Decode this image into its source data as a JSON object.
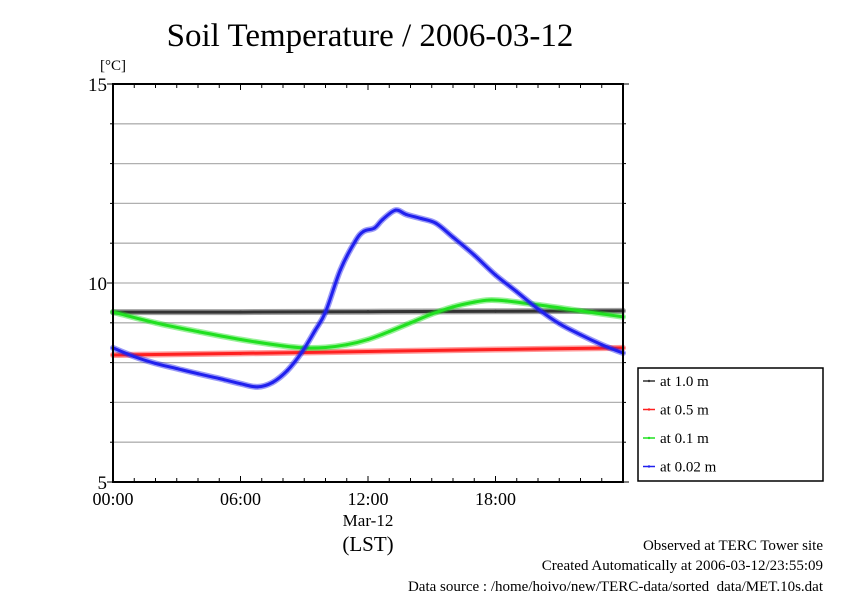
{
  "chart_data": {
    "type": "line",
    "title": "Soil Temperature / 2006-03-12",
    "ylabel": "[°C]",
    "xlabel": "(LST)",
    "date_label": "Mar-12",
    "ylim": [
      5,
      15
    ],
    "xlim_hours": [
      0,
      24
    ],
    "yticks": [
      {
        "value": 5,
        "label": "5"
      },
      {
        "value": 10,
        "label": "10"
      },
      {
        "value": 15,
        "label": "15"
      }
    ],
    "xticks": [
      {
        "value": 0,
        "label": "00:00"
      },
      {
        "value": 6,
        "label": "06:00"
      },
      {
        "value": 12,
        "label": "12:00"
      },
      {
        "value": 18,
        "label": "18:00"
      }
    ],
    "grid": true,
    "legend_position": "right",
    "series": [
      {
        "name": "at 1.0 m",
        "color": "#333333",
        "x": [
          0,
          6,
          12,
          18,
          24
        ],
        "y": [
          9.27,
          9.27,
          9.28,
          9.29,
          9.3
        ]
      },
      {
        "name": "at 0.5 m",
        "color": "#ff2020",
        "x": [
          0,
          6,
          12,
          18,
          24
        ],
        "y": [
          8.19,
          8.23,
          8.28,
          8.33,
          8.37
        ]
      },
      {
        "name": "at 0.1 m",
        "color": "#20e020",
        "x": [
          0,
          2,
          4,
          6,
          8,
          9,
          10,
          11,
          12,
          13,
          14,
          15,
          16,
          17,
          17.7,
          18.5,
          20,
          22,
          24
        ],
        "y": [
          9.27,
          9.0,
          8.78,
          8.58,
          8.42,
          8.37,
          8.38,
          8.45,
          8.58,
          8.78,
          9.0,
          9.22,
          9.4,
          9.52,
          9.57,
          9.55,
          9.45,
          9.3,
          9.15
        ]
      },
      {
        "name": "at 0.02 m",
        "color": "#2020ee",
        "x": [
          0,
          1,
          2,
          3,
          4,
          5,
          6,
          6.8,
          7.5,
          8.2,
          8.9,
          9.5,
          10,
          10.7,
          11.4,
          11.8,
          12.3,
          12.7,
          13.3,
          13.8,
          14.5,
          15.2,
          16,
          17,
          18,
          19,
          20,
          21,
          22,
          23,
          24
        ],
        "y": [
          8.37,
          8.15,
          7.98,
          7.85,
          7.72,
          7.6,
          7.47,
          7.39,
          7.5,
          7.8,
          8.27,
          8.8,
          9.27,
          10.33,
          11.05,
          11.3,
          11.38,
          11.6,
          11.83,
          11.72,
          11.62,
          11.5,
          11.15,
          10.7,
          10.2,
          9.78,
          9.35,
          8.98,
          8.7,
          8.45,
          8.24
        ]
      }
    ],
    "annotations": [
      "Observed at TERC Tower site",
      "Created Automatically at 2006-03-12/23:55:09",
      "Data source : /home/hoivo/new/TERC-data/sorted  data/MET.10s.dat"
    ]
  }
}
